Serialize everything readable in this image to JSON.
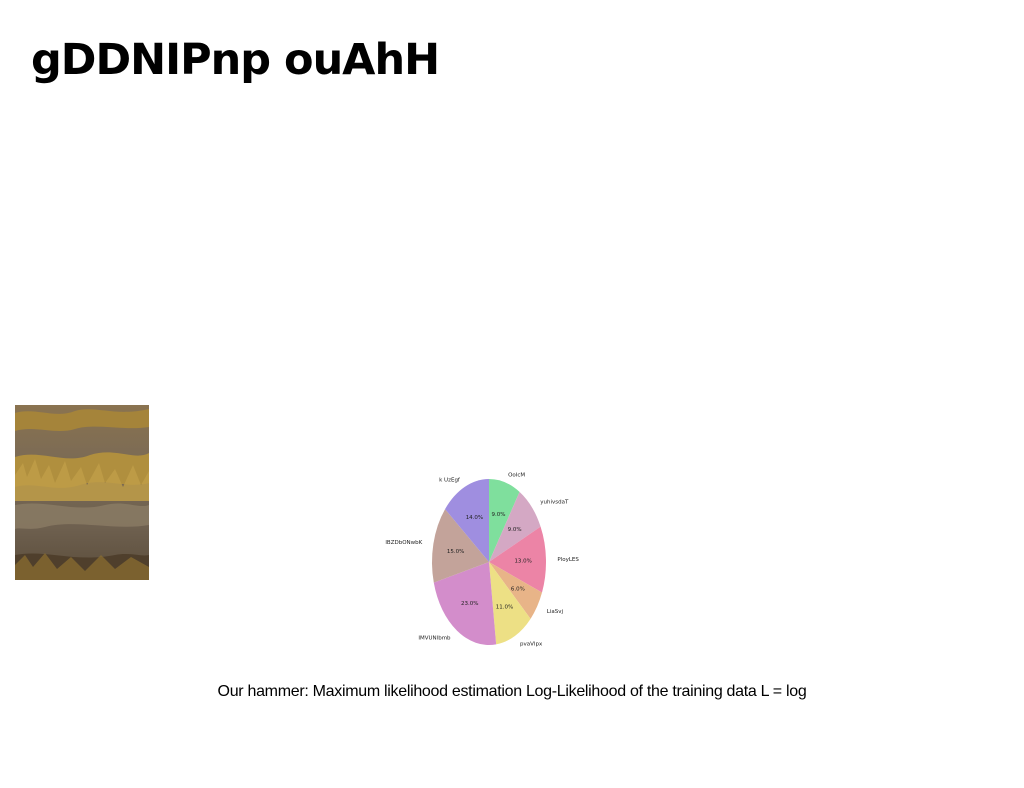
{
  "slide": {
    "title": "gDDNIPnp ouAhH",
    "caption": "Our hammer: Maximum likelihood estimation Log-Likelihood of the training data L = log"
  },
  "photo": {
    "subject": "dry grass over rocky ground"
  },
  "chart_data": {
    "type": "pie",
    "title": "",
    "start_angle_deg": 90,
    "direction": "clockwise",
    "slices": [
      {
        "label": "OoIcM",
        "value": 9.0,
        "pct_label": "9.0%",
        "color": "#7fdf9d"
      },
      {
        "label": "yuhivsdaT",
        "value": 9.0,
        "pct_label": "9.0%",
        "color": "#d4a8c4"
      },
      {
        "label": "PloyLES",
        "value": 13.0,
        "pct_label": "13.0%",
        "color": "#ec84a6"
      },
      {
        "label": "LiaSvj",
        "value": 6.0,
        "pct_label": "6.0%",
        "color": "#e8b488"
      },
      {
        "label": "pvaVlpx",
        "value": 11.0,
        "pct_label": "11.0%",
        "color": "#ede085"
      },
      {
        "label": "IMVUNlbmb",
        "value": 23.0,
        "pct_label": "23.0%",
        "color": "#d38dcb"
      },
      {
        "label": "lBZDbONwbK",
        "value": 15.0,
        "pct_label": "15.0%",
        "color": "#c3a39a"
      },
      {
        "label": "k UzEgf",
        "value": 14.0,
        "pct_label": "14.0%",
        "color": "#9f8ee0"
      }
    ]
  }
}
